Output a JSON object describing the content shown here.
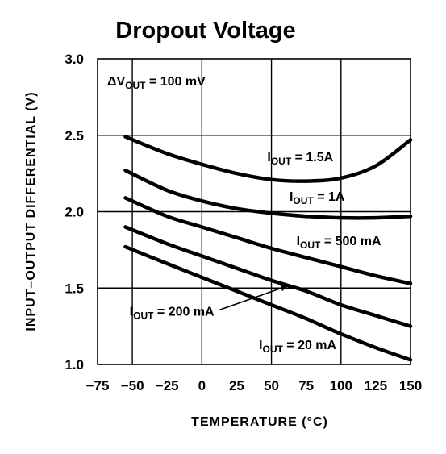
{
  "chart_data": {
    "type": "line",
    "title": "Dropout Voltage",
    "xlabel": "TEMPERATURE (°C)",
    "ylabel": "INPUT–OUTPUT DIFFERENTIAL (V)",
    "xlim": [
      -75,
      150
    ],
    "ylim": [
      1.0,
      3.0
    ],
    "xticks": [
      "−75",
      "−50",
      "−25",
      "0",
      "25",
      "50",
      "75",
      "100",
      "125",
      "150"
    ],
    "yticks": [
      "1.0",
      "1.5",
      "2.0",
      "2.5",
      "3.0"
    ],
    "grid": true,
    "condition": {
      "prefix": "ΔV",
      "sub": "OUT",
      "suffix": " = 100 mV"
    },
    "series": [
      {
        "name": "IOUT = 1.5A",
        "label_main": "I",
        "label_sub": "OUT",
        "label_rest": " = 1.5A",
        "x": [
          -55,
          -25,
          0,
          25,
          50,
          75,
          100,
          125,
          150
        ],
        "y": [
          2.49,
          2.38,
          2.31,
          2.25,
          2.21,
          2.2,
          2.22,
          2.3,
          2.47
        ]
      },
      {
        "name": "IOUT = 1A",
        "label_main": "I",
        "label_sub": "OUT",
        "label_rest": " = 1A",
        "x": [
          -55,
          -25,
          0,
          25,
          50,
          75,
          100,
          125,
          150
        ],
        "y": [
          2.27,
          2.14,
          2.07,
          2.02,
          1.99,
          1.97,
          1.96,
          1.96,
          1.97
        ]
      },
      {
        "name": "IOUT = 500 mA",
        "label_main": "I",
        "label_sub": "OUT",
        "label_rest": " = 500 mA",
        "x": [
          -55,
          -25,
          0,
          25,
          50,
          75,
          100,
          125,
          150
        ],
        "y": [
          2.09,
          1.97,
          1.9,
          1.83,
          1.76,
          1.7,
          1.64,
          1.58,
          1.53
        ]
      },
      {
        "name": "IOUT = 200 mA",
        "label_main": "I",
        "label_sub": "OUT",
        "label_rest": " = 200 mA",
        "x": [
          -55,
          -25,
          0,
          25,
          50,
          75,
          100,
          125,
          150
        ],
        "y": [
          1.9,
          1.79,
          1.71,
          1.63,
          1.55,
          1.48,
          1.39,
          1.32,
          1.25
        ]
      },
      {
        "name": "IOUT = 20 mA",
        "label_main": "I",
        "label_sub": "OUT",
        "label_rest": " = 20 mA",
        "x": [
          -55,
          -25,
          0,
          25,
          50,
          75,
          100,
          125,
          150
        ],
        "y": [
          1.77,
          1.66,
          1.57,
          1.48,
          1.39,
          1.3,
          1.2,
          1.11,
          1.03
        ]
      }
    ]
  }
}
